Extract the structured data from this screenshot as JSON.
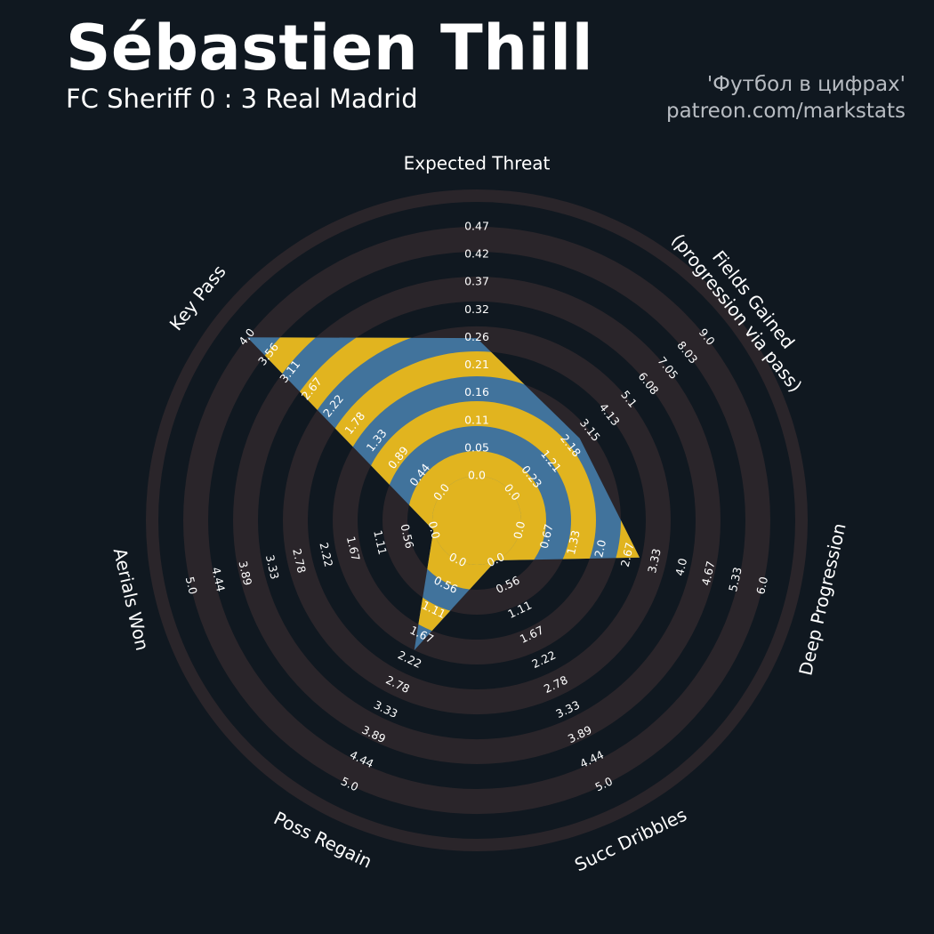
{
  "header": {
    "title": "Sébastien Thill",
    "subtitle": "FC Sheriff 0 : 3 Real Madrid",
    "credit_line1": "'Футбол в цифрах'",
    "credit_line2": "patreon.com/markstats"
  },
  "colors": {
    "background": "#101820",
    "ring_dark": "#2a252a",
    "ring_gap": "#101820",
    "fill_blue": "#41739c",
    "fill_yellow": "#e1b41f",
    "label": "#ffffff"
  },
  "chart_data": {
    "type": "radar",
    "parameters": [
      {
        "name": "Expected Threat",
        "ticks": [
          "0.0",
          "0.05",
          "0.11",
          "0.16",
          "0.21",
          "0.26",
          "0.32",
          "0.37",
          "0.42",
          "0.47"
        ],
        "min": 0.0,
        "max": 0.47,
        "value": 0.26
      },
      {
        "name": "Fields Gained\n(progression via pass)",
        "ticks": [
          "0.0",
          "0.23",
          "1.21",
          "2.18",
          "3.15",
          "4.13",
          "5.1",
          "6.08",
          "7.05",
          "8.03",
          "9.0"
        ],
        "min": 0.0,
        "max": 9.0,
        "value": 3.15
      },
      {
        "name": "Deep Progression",
        "ticks": [
          "0.0",
          "0.67",
          "1.33",
          "2.0",
          "2.67",
          "3.33",
          "4.0",
          "4.67",
          "5.33",
          "6.0"
        ],
        "min": 0.0,
        "max": 6.0,
        "value": 2.95
      },
      {
        "name": "Succ Dribbles",
        "ticks": [
          "0.0",
          "0.56",
          "1.11",
          "1.67",
          "2.22",
          "2.78",
          "3.33",
          "3.89",
          "4.44",
          "5.0"
        ],
        "min": 0.0,
        "max": 5.0,
        "value": 0.0
      },
      {
        "name": "Poss Regain",
        "ticks": [
          "0.0",
          "0.56",
          "1.11",
          "1.67",
          "2.22",
          "2.78",
          "3.33",
          "3.89",
          "4.44",
          "5.0"
        ],
        "min": 0.0,
        "max": 5.0,
        "value": 2.0
      },
      {
        "name": "Aerials Won",
        "ticks": [
          "0.0",
          "0.56",
          "1.11",
          "1.67",
          "2.22",
          "2.78",
          "3.33",
          "3.89",
          "4.44",
          "5.0"
        ],
        "min": 0.0,
        "max": 5.0,
        "value": 0.0
      },
      {
        "name": "Key Pass",
        "ticks": [
          "0.0",
          "0.44",
          "0.89",
          "1.33",
          "1.78",
          "2.22",
          "2.67",
          "3.11",
          "3.56",
          "4.0"
        ],
        "min": 0.0,
        "max": 4.0,
        "value": 4.0
      }
    ]
  }
}
